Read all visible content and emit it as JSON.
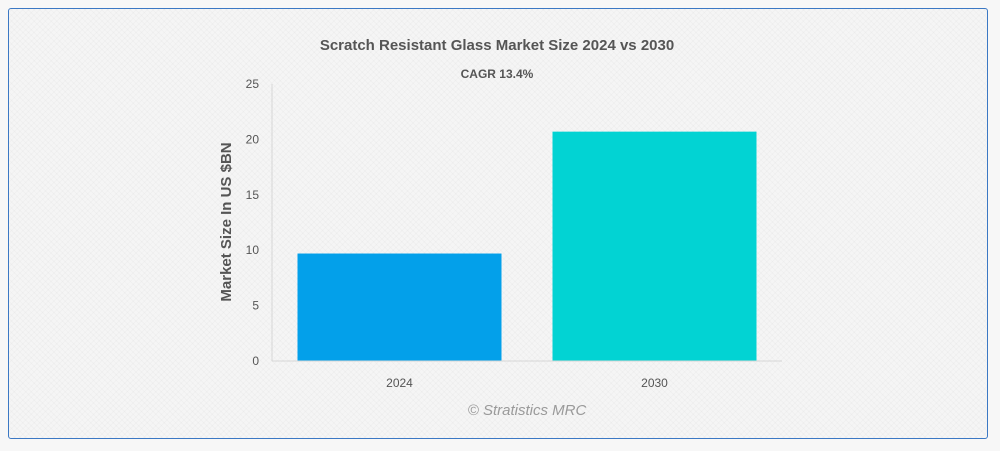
{
  "chart_data": {
    "type": "bar",
    "title": "Scratch Resistant Glass Market Size 2024 vs 2030",
    "subtitle": "CAGR 13.4%",
    "categories": [
      "2024",
      "2030"
    ],
    "values": [
      9.7,
      20.7
    ],
    "colors": [
      "#03a0ea",
      "#02d3d3"
    ],
    "ylabel": "Market Size In US $BN",
    "xlabel": "",
    "ylim": [
      0,
      25
    ],
    "yticks": [
      "0",
      "5",
      "10",
      "15",
      "20",
      "25"
    ],
    "grid": false,
    "legend": "none"
  },
  "credit": "© Stratistics MRC"
}
